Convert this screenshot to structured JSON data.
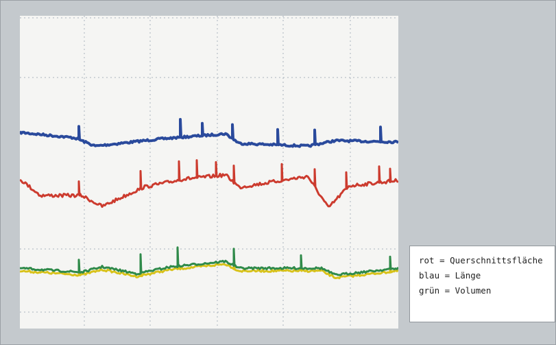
{
  "legend": {
    "lines": [
      "rot = Querschnittsfläche",
      "blau = Länge",
      "grün = Volumen"
    ]
  }
}
